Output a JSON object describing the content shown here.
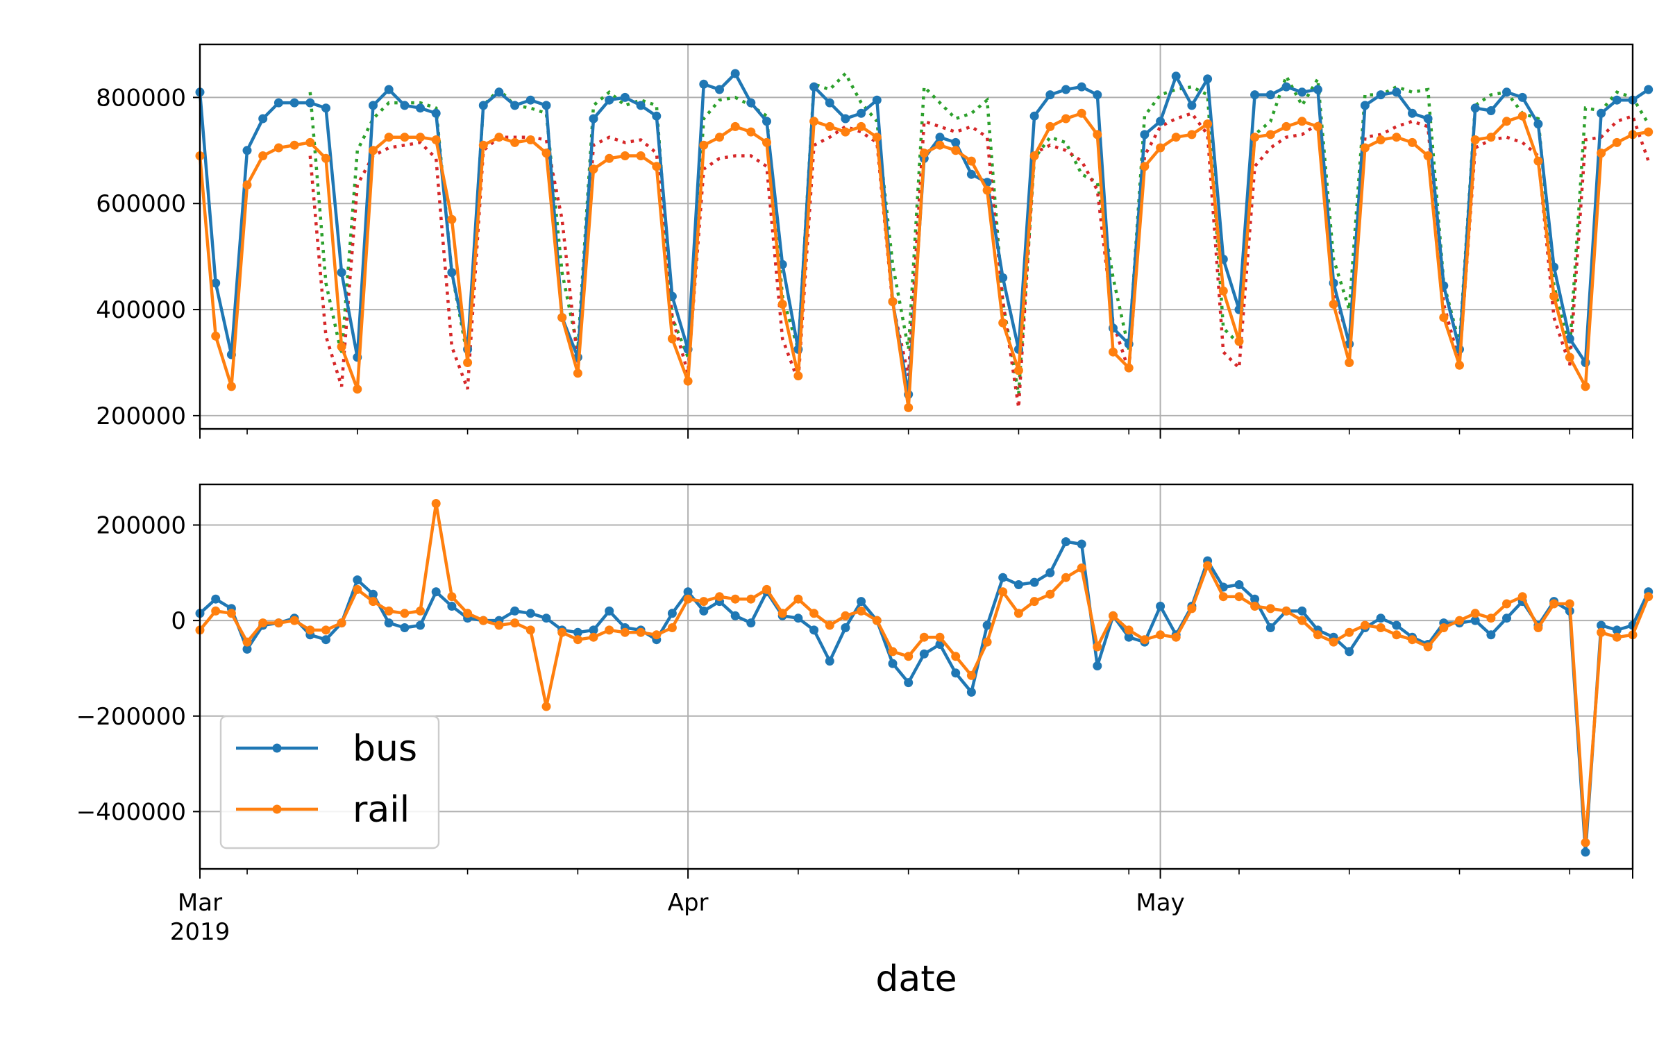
{
  "chart_data": {
    "type": "line",
    "xlabel": "date",
    "start_date": "2019-03-01",
    "x_range": [
      "2019-03-01",
      "2019-05-31"
    ],
    "x_major_ticks": [
      {
        "date": "2019-03-01",
        "label": "Mar",
        "sublabel": "2019"
      },
      {
        "date": "2019-04-01",
        "label": "Apr",
        "sublabel": ""
      },
      {
        "date": "2019-05-01",
        "label": "May",
        "sublabel": ""
      }
    ],
    "x_minor_tick_dates": [
      "2019-03-04",
      "2019-03-11",
      "2019-03-18",
      "2019-03-25",
      "2019-04-08",
      "2019-04-15",
      "2019-04-22",
      "2019-04-29",
      "2019-05-06",
      "2019-05-13",
      "2019-05-20",
      "2019-05-27"
    ],
    "grid": true,
    "legend": {
      "placement": "lower-left",
      "panel": "bottom",
      "entries": [
        "bus",
        "rail"
      ]
    },
    "colors": {
      "bus": "#1f77b4",
      "rail": "#ff7f0e",
      "bus_forecast": "#2ca02c",
      "rail_forecast": "#d62728"
    },
    "top_panel": {
      "ylim": [
        175000,
        900000
      ],
      "yticks": [
        200000,
        400000,
        600000,
        800000
      ],
      "ytick_labels": [
        "200000",
        "400000",
        "600000",
        "800000"
      ],
      "series": [
        {
          "name": "bus",
          "style": "line-markers",
          "values": [
            810000,
            450000,
            315000,
            700000,
            760000,
            790000,
            790000,
            790000,
            780000,
            470000,
            310000,
            785000,
            815000,
            785000,
            780000,
            770000,
            470000,
            325000,
            785000,
            810000,
            785000,
            795000,
            785000,
            385000,
            310000,
            760000,
            795000,
            800000,
            785000,
            765000,
            425000,
            325000,
            825000,
            815000,
            845000,
            790000,
            755000,
            485000,
            325000,
            820000,
            790000,
            760000,
            770000,
            795000,
            415000,
            240000,
            685000,
            725000,
            715000,
            655000,
            640000,
            460000,
            325000,
            765000,
            805000,
            815000,
            820000,
            805000,
            365000,
            335000,
            730000,
            755000,
            840000,
            785000,
            835000,
            495000,
            400000,
            805000,
            805000,
            820000,
            810000,
            815000,
            450000,
            335000,
            785000,
            805000,
            810000,
            770000,
            760000,
            445000,
            325000,
            780000,
            775000,
            810000,
            800000,
            750000,
            480000,
            345000,
            300000,
            770000,
            795000,
            795000,
            815000
          ]
        },
        {
          "name": "rail",
          "style": "line-markers",
          "values": [
            690000,
            350000,
            255000,
            635000,
            690000,
            705000,
            710000,
            715000,
            685000,
            330000,
            250000,
            700000,
            725000,
            725000,
            725000,
            720000,
            570000,
            300000,
            710000,
            725000,
            715000,
            720000,
            695000,
            385000,
            280000,
            665000,
            685000,
            690000,
            690000,
            670000,
            345000,
            265000,
            710000,
            725000,
            745000,
            735000,
            715000,
            410000,
            275000,
            755000,
            745000,
            735000,
            745000,
            725000,
            415000,
            215000,
            695000,
            710000,
            700000,
            680000,
            625000,
            375000,
            285000,
            690000,
            745000,
            760000,
            770000,
            730000,
            320000,
            290000,
            670000,
            705000,
            725000,
            730000,
            750000,
            435000,
            340000,
            725000,
            730000,
            745000,
            755000,
            745000,
            410000,
            300000,
            705000,
            720000,
            725000,
            715000,
            690000,
            385000,
            295000,
            720000,
            725000,
            755000,
            765000,
            680000,
            425000,
            310000,
            255000,
            695000,
            715000,
            730000,
            735000
          ]
        },
        {
          "name": "bus_forecast",
          "style": "dotted",
          "offset_days": 7,
          "values": [
            810000,
            450000,
            315000,
            700000,
            760000,
            790000,
            790000,
            790000,
            780000,
            470000,
            310000,
            785000,
            815000,
            785000,
            780000,
            770000,
            470000,
            325000,
            785000,
            810000,
            785000,
            795000,
            785000,
            385000,
            310000,
            760000,
            795000,
            800000,
            785000,
            765000,
            425000,
            325000,
            825000,
            815000,
            845000,
            790000,
            755000,
            485000,
            325000,
            820000,
            790000,
            760000,
            770000,
            795000,
            415000,
            240000,
            685000,
            725000,
            715000,
            655000,
            640000,
            460000,
            325000,
            765000,
            805000,
            815000,
            820000,
            805000,
            365000,
            335000,
            730000,
            755000,
            840000,
            785000,
            835000,
            495000,
            400000,
            805000,
            805000,
            820000,
            810000,
            815000,
            450000,
            335000,
            785000,
            805000,
            810000,
            770000,
            760000,
            445000,
            325000,
            780000,
            775000,
            810000,
            800000,
            750000
          ]
        },
        {
          "name": "rail_forecast",
          "style": "dotted",
          "offset_days": 7,
          "values": [
            690000,
            350000,
            255000,
            635000,
            690000,
            705000,
            710000,
            715000,
            685000,
            330000,
            250000,
            700000,
            725000,
            725000,
            725000,
            720000,
            570000,
            300000,
            710000,
            725000,
            715000,
            720000,
            695000,
            385000,
            280000,
            665000,
            685000,
            690000,
            690000,
            670000,
            345000,
            265000,
            710000,
            725000,
            745000,
            735000,
            715000,
            410000,
            275000,
            755000,
            745000,
            735000,
            745000,
            725000,
            415000,
            215000,
            695000,
            710000,
            700000,
            680000,
            625000,
            375000,
            285000,
            690000,
            745000,
            760000,
            770000,
            730000,
            320000,
            290000,
            670000,
            705000,
            725000,
            730000,
            750000,
            435000,
            340000,
            725000,
            730000,
            745000,
            755000,
            745000,
            410000,
            300000,
            705000,
            720000,
            725000,
            715000,
            690000,
            385000,
            295000,
            720000,
            725000,
            755000,
            765000,
            680000
          ]
        }
      ]
    },
    "bottom_panel": {
      "ylim": [
        -520000,
        285000
      ],
      "yticks": [
        -400000,
        -200000,
        0,
        200000
      ],
      "ytick_labels": [
        "−400000",
        "−200000",
        "0",
        "200000"
      ],
      "series": [
        {
          "name": "bus",
          "style": "line-markers",
          "values": [
            15000,
            45000,
            25000,
            -60000,
            -10000,
            -5000,
            5000,
            -30000,
            -40000,
            -5000,
            85000,
            55000,
            -5000,
            -15000,
            -10000,
            60000,
            30000,
            5000,
            0,
            0,
            20000,
            15000,
            5000,
            -20000,
            -25000,
            -20000,
            20000,
            -15000,
            -20000,
            -40000,
            15000,
            60000,
            20000,
            40000,
            10000,
            -5000,
            60000,
            10000,
            5000,
            -20000,
            -85000,
            -15000,
            40000,
            0,
            -90000,
            -130000,
            -70000,
            -50000,
            -110000,
            -150000,
            -10000,
            90000,
            75000,
            80000,
            100000,
            165000,
            160000,
            -95000,
            10000,
            -35000,
            -45000,
            30000,
            -30000,
            30000,
            125000,
            70000,
            75000,
            45000,
            -15000,
            20000,
            20000,
            -20000,
            -35000,
            -65000,
            -15000,
            5000,
            -10000,
            -35000,
            -50000,
            -5000,
            -5000,
            0,
            -30000,
            5000,
            40000,
            -10000,
            40000,
            20000,
            -485000,
            -10000,
            -20000,
            -10000,
            60000
          ]
        },
        {
          "name": "rail",
          "style": "line-markers",
          "values": [
            -20000,
            20000,
            15000,
            -45000,
            -5000,
            -5000,
            0,
            -20000,
            -20000,
            -5000,
            65000,
            40000,
            20000,
            15000,
            20000,
            245000,
            50000,
            15000,
            0,
            -10000,
            -5000,
            -20000,
            -180000,
            -25000,
            -40000,
            -35000,
            -20000,
            -25000,
            -25000,
            -30000,
            -15000,
            45000,
            40000,
            50000,
            45000,
            45000,
            65000,
            15000,
            45000,
            15000,
            -10000,
            10000,
            20000,
            0,
            -65000,
            -75000,
            -35000,
            -35000,
            -75000,
            -115000,
            -45000,
            60000,
            15000,
            40000,
            55000,
            90000,
            110000,
            -55000,
            10000,
            -20000,
            -40000,
            -30000,
            -35000,
            25000,
            115000,
            50000,
            50000,
            30000,
            25000,
            20000,
            0,
            -30000,
            -45000,
            -25000,
            -10000,
            -15000,
            -30000,
            -40000,
            -55000,
            -15000,
            0,
            15000,
            5000,
            35000,
            50000,
            -15000,
            35000,
            35000,
            -465000,
            -25000,
            -35000,
            -30000,
            50000
          ]
        }
      ]
    }
  }
}
